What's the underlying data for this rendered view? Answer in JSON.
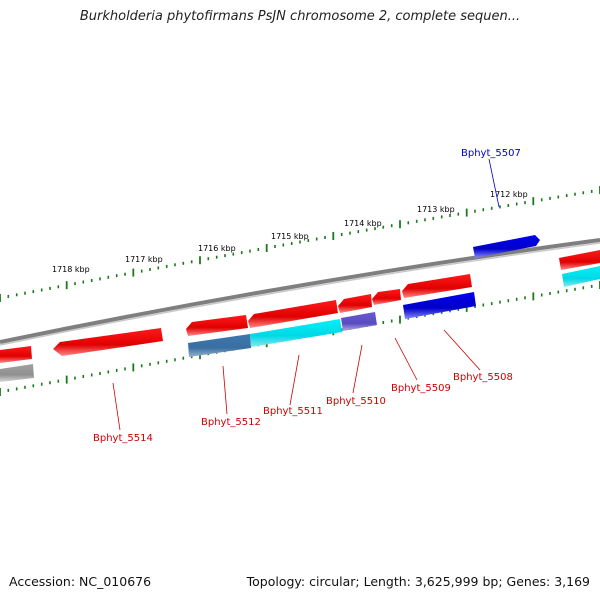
{
  "title": "Burkholderia phytofirmans PsJN chromosome 2, complete sequen...",
  "footer": {
    "accession": "Accession: NC_010676",
    "topology": "Topology: circular; Length: 3,625,999 bp; Genes: 3,169"
  },
  "ticks": [
    "1718 kbp",
    "1717 kbp",
    "1716 kbp",
    "1715 kbp",
    "1714 kbp",
    "1713 kbp",
    "1712 kbp"
  ],
  "genes": [
    "Bphyt_5507",
    "Bphyt_5508",
    "Bphyt_5509",
    "Bphyt_5510",
    "Bphyt_5511",
    "Bphyt_5512",
    "Bphyt_5514"
  ],
  "colors": {
    "gene_label": "#cc0000",
    "highlight_label": "#0000cc",
    "backbone": "#808080",
    "tick": "#1a7a1a",
    "gene_red": "#ff1a1a",
    "gene_blue": "#0000e6",
    "gene_cyan": "#00e5ee",
    "gene_steel": "#4682b4",
    "gene_purple": "#6f5fd0"
  }
}
